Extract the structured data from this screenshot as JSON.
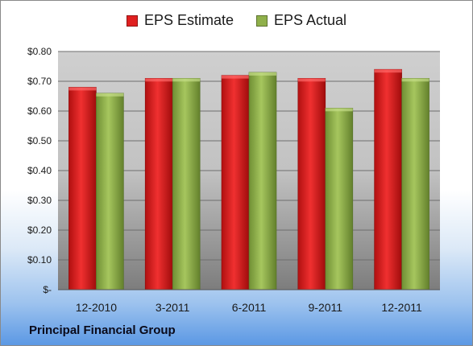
{
  "chart_data": {
    "type": "bar",
    "categories": [
      "12-2010",
      "3-2011",
      "6-2011",
      "9-2011",
      "12-2011"
    ],
    "series": [
      {
        "name": "EPS Estimate",
        "values": [
          0.68,
          0.71,
          0.72,
          0.71,
          0.74
        ],
        "color": "#e02020"
      },
      {
        "name": "EPS Actual",
        "values": [
          0.66,
          0.71,
          0.73,
          0.61,
          0.71
        ],
        "color": "#8fb04a"
      }
    ],
    "y_ticks": [
      {
        "value": 0.0,
        "label": "$-"
      },
      {
        "value": 0.1,
        "label": "$0.10"
      },
      {
        "value": 0.2,
        "label": "$0.20"
      },
      {
        "value": 0.3,
        "label": "$0.30"
      },
      {
        "value": 0.4,
        "label": "$0.40"
      },
      {
        "value": 0.5,
        "label": "$0.50"
      },
      {
        "value": 0.6,
        "label": "$0.60"
      },
      {
        "value": 0.7,
        "label": "$0.70"
      },
      {
        "value": 0.8,
        "label": "$0.80"
      }
    ],
    "ylim": [
      0,
      0.8
    ],
    "grid": true,
    "legend_position": "top"
  },
  "footer_label": "Principal Financial Group"
}
